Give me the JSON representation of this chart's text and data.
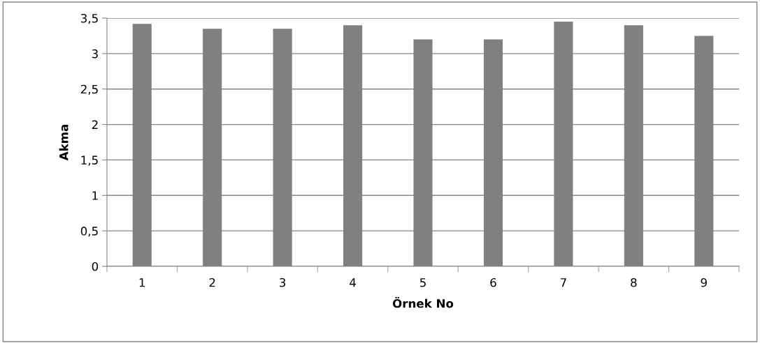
{
  "chart_data": {
    "type": "bar",
    "xlabel": "Örnek No",
    "ylabel": "Akma",
    "categories": [
      "1",
      "2",
      "3",
      "4",
      "5",
      "6",
      "7",
      "8",
      "9"
    ],
    "values": [
      3.42,
      3.35,
      3.35,
      3.4,
      3.2,
      3.2,
      3.45,
      3.4,
      3.25
    ],
    "color": "#808080",
    "ylim": [
      0,
      3.5
    ],
    "yticks": [
      0,
      {
        "value": 0.5,
        "label": "0,5"
      },
      1,
      {
        "value": 1.5,
        "label": "1,5"
      },
      2,
      {
        "value": 2.5,
        "label": "2,5"
      },
      3,
      {
        "value": 3.5,
        "label": "3,5"
      }
    ],
    "grid": "y",
    "legend": false
  }
}
